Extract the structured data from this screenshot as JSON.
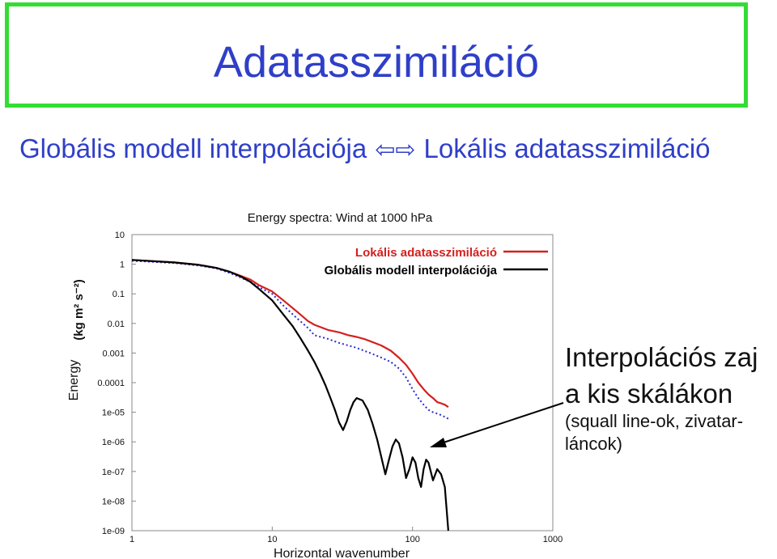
{
  "slide": {
    "title": "Adatasszimiláció",
    "subtitle_left": "Globális modell interpolációja",
    "subtitle_arrow": "⇦⇨",
    "subtitle_right": "Lokális adatasszimiláció",
    "annotation": {
      "line1": "Interpolációs zaj",
      "line2": "a kis skálákon",
      "line3": "(squall line-ok, zivatar-",
      "line4": "láncok)"
    }
  },
  "colors": {
    "title_border": "#33dd33",
    "title_text": "#2f3fc8",
    "local_series": "#d42020",
    "global_series": "#000000",
    "dotted_series": "#2a2ad0"
  },
  "chart_data": {
    "type": "line",
    "title": "Energy spectra: Wind at 1000 hPa",
    "xlabel": "Horizontal wavenumber",
    "ylabel": "Energy",
    "ylabel_units": "(kg m² s⁻²)",
    "xscale": "log",
    "yscale": "log",
    "xlim": [
      1,
      1000
    ],
    "ylim": [
      1e-09,
      10
    ],
    "x_ticks": [
      "1",
      "10",
      "100",
      "1000"
    ],
    "y_ticks": [
      "10",
      "1",
      "0.1",
      "0.01",
      "0.001",
      "0.0001",
      "1e-05",
      "1e-06",
      "1e-07",
      "1e-08",
      "1e-09"
    ],
    "legend_position": "top-right",
    "series": [
      {
        "name": "Lokális adatasszimiláció",
        "style": "solid",
        "color": "#d42020",
        "x": [
          1,
          2,
          3,
          4,
          5,
          6,
          7,
          8,
          10,
          12,
          15,
          18,
          20,
          25,
          30,
          35,
          40,
          45,
          50,
          60,
          70,
          80,
          90,
          100,
          110,
          120,
          130,
          140,
          150,
          160,
          170,
          180
        ],
        "y": [
          1.4,
          1.15,
          0.95,
          0.75,
          0.55,
          0.4,
          0.3,
          0.2,
          0.12,
          0.06,
          0.025,
          0.012,
          0.009,
          0.006,
          0.005,
          0.004,
          0.0035,
          0.003,
          0.0025,
          0.0018,
          0.0012,
          0.0007,
          0.0004,
          0.0002,
          0.0001,
          6e-05,
          4e-05,
          3e-05,
          2.2e-05,
          2e-05,
          1.8e-05,
          1.5e-05
        ]
      },
      {
        "name": "",
        "style": "dotted",
        "color": "#2a2ad0",
        "x": [
          1,
          2,
          3,
          4,
          5,
          6,
          7,
          8,
          10,
          12,
          15,
          18,
          20,
          25,
          30,
          35,
          40,
          45,
          50,
          60,
          70,
          80,
          90,
          100,
          110,
          120,
          130,
          140,
          150,
          160,
          170,
          180
        ],
        "y": [
          1.3,
          1.1,
          0.9,
          0.72,
          0.5,
          0.35,
          0.25,
          0.17,
          0.1,
          0.04,
          0.015,
          0.007,
          0.004,
          0.003,
          0.0022,
          0.0018,
          0.0015,
          0.0012,
          0.001,
          0.0007,
          0.0005,
          0.0003,
          0.00015,
          6e-05,
          3e-05,
          1.8e-05,
          1.2e-05,
          1e-05,
          9e-06,
          8e-06,
          7e-06,
          6e-06
        ]
      },
      {
        "name": "Globális modell interpolációja",
        "style": "solid",
        "color": "#000000",
        "x": [
          1,
          2,
          3,
          4,
          5,
          6,
          7,
          8,
          10,
          12,
          14,
          16,
          18,
          20,
          22,
          24,
          26,
          28,
          30,
          32,
          34,
          36,
          38,
          40,
          44,
          48,
          52,
          56,
          60,
          64,
          68,
          72,
          76,
          80,
          85,
          90,
          95,
          100,
          105,
          110,
          115,
          120,
          125,
          130,
          140,
          150,
          160,
          170,
          180
        ],
        "y": [
          1.4,
          1.15,
          0.95,
          0.75,
          0.55,
          0.38,
          0.25,
          0.15,
          0.06,
          0.02,
          0.008,
          0.003,
          0.0012,
          0.0005,
          0.0002,
          8e-05,
          3e-05,
          1.2e-05,
          4.5e-06,
          2.5e-06,
          5e-06,
          1.2e-05,
          2.2e-05,
          3e-05,
          2.5e-05,
          1.2e-05,
          4e-06,
          1.2e-06,
          3e-07,
          8e-08,
          2.5e-07,
          7e-07,
          1.2e-06,
          9e-07,
          3e-07,
          6e-08,
          1.2e-07,
          3e-07,
          2e-07,
          6e-08,
          3e-08,
          1.2e-07,
          2.5e-07,
          2e-07,
          5e-08,
          1.2e-07,
          8e-08,
          3e-08,
          1e-09
        ]
      }
    ]
  }
}
